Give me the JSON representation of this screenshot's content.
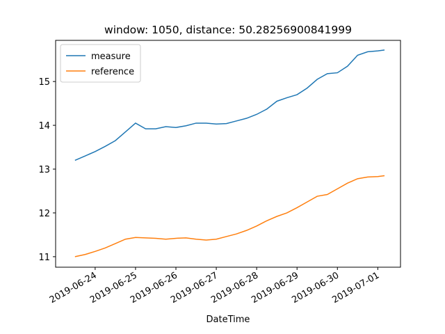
{
  "chart_data": {
    "type": "line",
    "title": "window: 1050, distance: 50.28256900841999",
    "x_label": "DateTime",
    "x": [
      "2019-06-23 12:00",
      "2019-06-23 18:00",
      "2019-06-24 00:00",
      "2019-06-24 06:00",
      "2019-06-24 12:00",
      "2019-06-24 18:00",
      "2019-06-25 00:00",
      "2019-06-25 06:00",
      "2019-06-25 12:00",
      "2019-06-25 18:00",
      "2019-06-26 00:00",
      "2019-06-26 06:00",
      "2019-06-26 12:00",
      "2019-06-26 18:00",
      "2019-06-27 00:00",
      "2019-06-27 06:00",
      "2019-06-27 12:00",
      "2019-06-27 18:00",
      "2019-06-28 00:00",
      "2019-06-28 06:00",
      "2019-06-28 12:00",
      "2019-06-28 18:00",
      "2019-06-29 00:00",
      "2019-06-29 06:00",
      "2019-06-29 12:00",
      "2019-06-29 18:00",
      "2019-06-30 00:00",
      "2019-06-30 06:00",
      "2019-06-30 12:00",
      "2019-06-30 18:00",
      "2019-07-01 00:00",
      "2019-07-01 04:00"
    ],
    "series": [
      {
        "name": "measure",
        "color": "#1f77b4",
        "values": [
          13.2,
          13.3,
          13.4,
          13.52,
          13.65,
          13.85,
          14.05,
          13.92,
          13.92,
          13.97,
          13.95,
          13.99,
          14.05,
          14.05,
          14.03,
          14.04,
          14.1,
          14.16,
          14.25,
          14.37,
          14.55,
          14.63,
          14.7,
          14.85,
          15.05,
          15.18,
          15.2,
          15.35,
          15.6,
          15.68,
          15.7,
          15.72
        ]
      },
      {
        "name": "reference",
        "color": "#ff7f0e",
        "values": [
          11.0,
          11.05,
          11.12,
          11.2,
          11.3,
          11.4,
          11.44,
          11.43,
          11.42,
          11.4,
          11.42,
          11.43,
          11.4,
          11.38,
          11.4,
          11.46,
          11.52,
          11.6,
          11.7,
          11.82,
          11.92,
          12.0,
          12.12,
          12.25,
          12.38,
          12.42,
          12.55,
          12.68,
          12.78,
          12.82,
          12.83,
          12.85
        ]
      }
    ],
    "xlim": [
      "2019-06-23 00:30",
      "2019-07-01 13:30"
    ],
    "xticks": [
      "2019-06-24",
      "2019-06-25",
      "2019-06-26",
      "2019-06-27",
      "2019-06-28",
      "2019-06-29",
      "2019-06-30",
      "2019-07-01"
    ],
    "ylim": [
      10.76,
      15.94
    ],
    "yticks": [
      11,
      12,
      13,
      14,
      15
    ],
    "legend": "upper left"
  }
}
